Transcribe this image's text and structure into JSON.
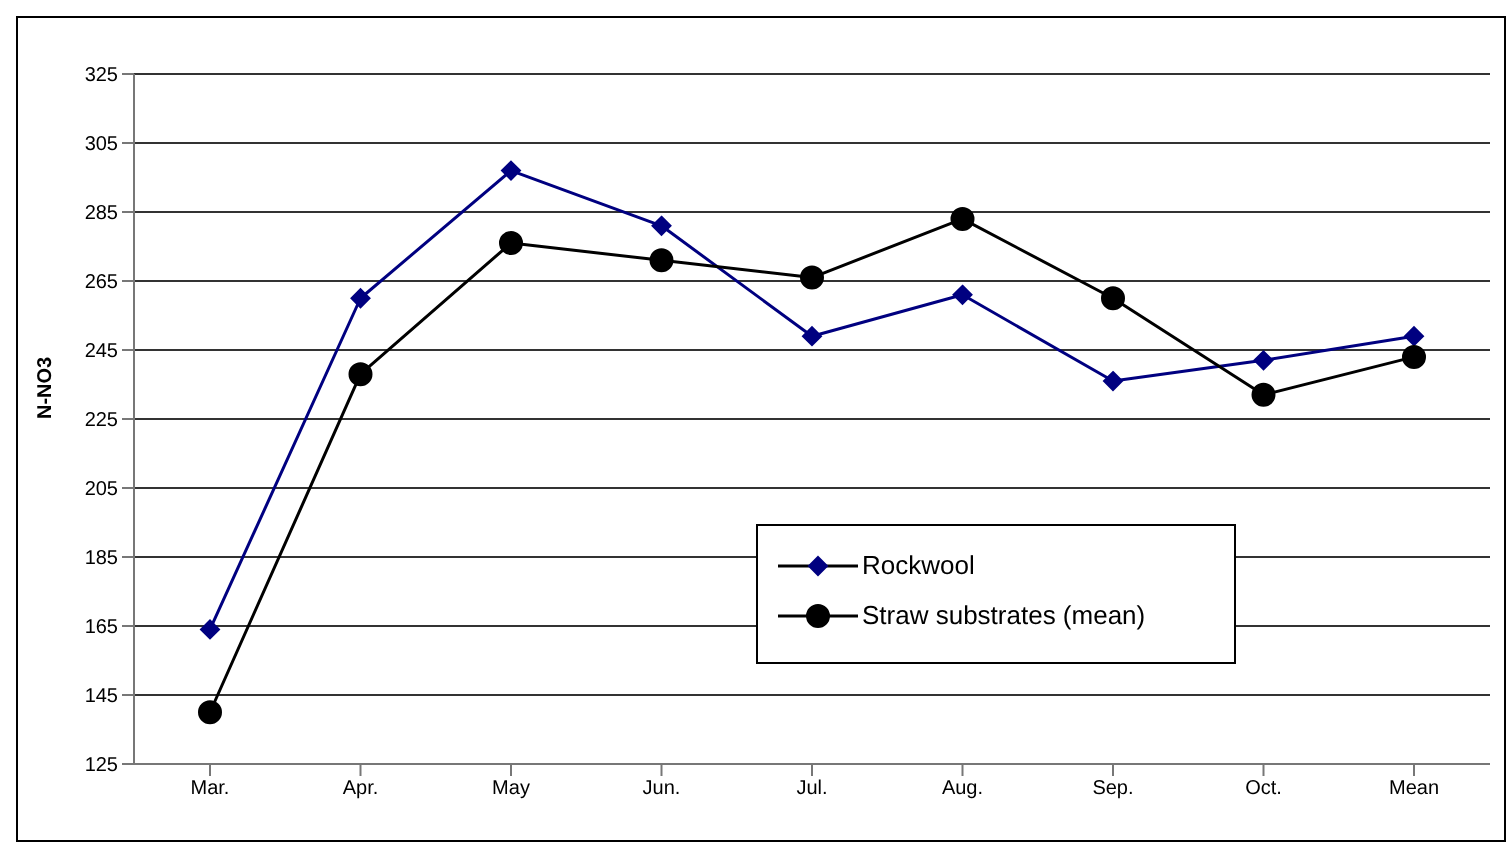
{
  "chart_data": {
    "type": "line",
    "ylabel": "N-NO3",
    "categories": [
      "Mar.",
      "Apr.",
      "May",
      "Jun.",
      "Jul.",
      "Aug.",
      "Sep.",
      "Oct.",
      "Mean"
    ],
    "series": [
      {
        "name": "Rockwool",
        "color": "#000080",
        "marker": "diamond",
        "values": [
          164,
          260,
          297,
          281,
          249,
          261,
          236,
          242,
          249
        ]
      },
      {
        "name": "Straw substrates (mean)",
        "color": "#000000",
        "marker": "circle",
        "values": [
          140,
          238,
          276,
          271,
          266,
          283,
          260,
          232,
          243
        ]
      }
    ],
    "ylim": [
      125,
      325
    ],
    "yticks": [
      125,
      145,
      165,
      185,
      205,
      225,
      245,
      265,
      285,
      305,
      325
    ],
    "grid": "y",
    "legend": "bottom right"
  }
}
